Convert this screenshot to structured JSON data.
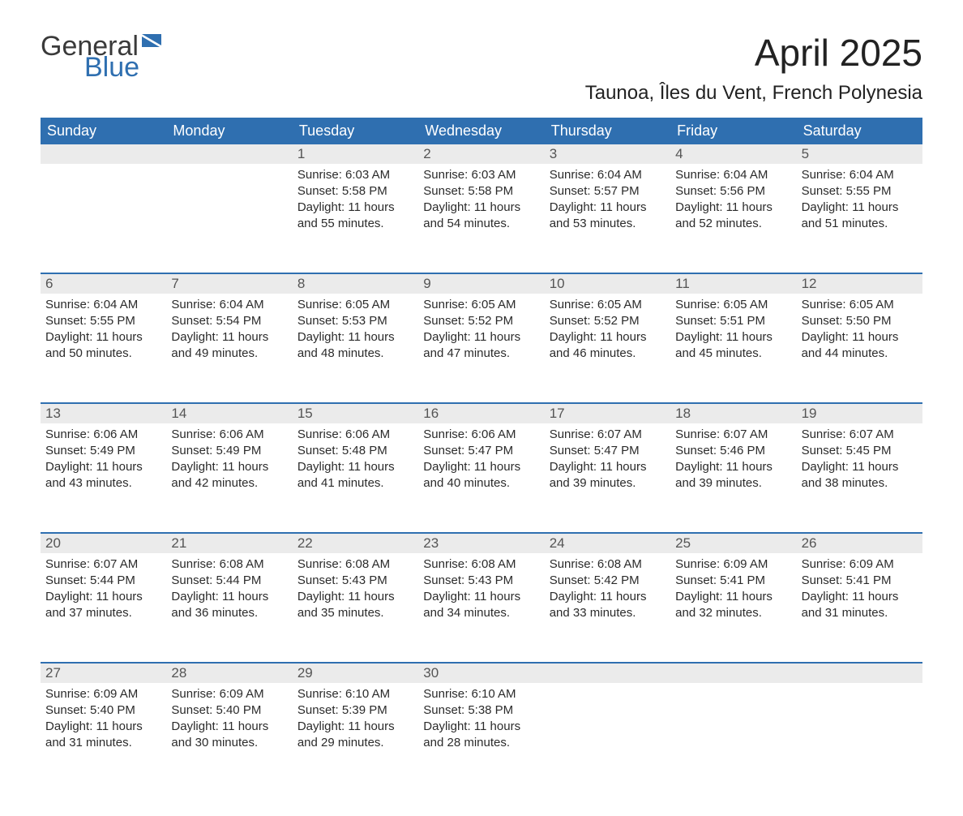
{
  "logo": {
    "text_general": "General",
    "text_blue": "Blue",
    "general_color": "#3a3a3a",
    "blue_color": "#2f6fb0",
    "flag_color": "#2f6fb0"
  },
  "header": {
    "month_title": "April 2025",
    "location": "Taunoa, Îles du Vent, French Polynesia",
    "title_color": "#222222",
    "title_fontsize": 46,
    "location_fontsize": 24
  },
  "calendar": {
    "header_bg": "#2f6fb0",
    "header_text_color": "#ffffff",
    "daynum_bg": "#ebebeb",
    "daynum_text_color": "#555555",
    "week_border_color": "#2f6fb0",
    "body_text_color": "#2b2b2b",
    "background_color": "#ffffff",
    "day_names": [
      "Sunday",
      "Monday",
      "Tuesday",
      "Wednesday",
      "Thursday",
      "Friday",
      "Saturday"
    ],
    "weeks": [
      {
        "nums": [
          "",
          "",
          "1",
          "2",
          "3",
          "4",
          "5"
        ],
        "cells": [
          null,
          null,
          {
            "sunrise": "Sunrise: 6:03 AM",
            "sunset": "Sunset: 5:58 PM",
            "dl1": "Daylight: 11 hours",
            "dl2": "and 55 minutes."
          },
          {
            "sunrise": "Sunrise: 6:03 AM",
            "sunset": "Sunset: 5:58 PM",
            "dl1": "Daylight: 11 hours",
            "dl2": "and 54 minutes."
          },
          {
            "sunrise": "Sunrise: 6:04 AM",
            "sunset": "Sunset: 5:57 PM",
            "dl1": "Daylight: 11 hours",
            "dl2": "and 53 minutes."
          },
          {
            "sunrise": "Sunrise: 6:04 AM",
            "sunset": "Sunset: 5:56 PM",
            "dl1": "Daylight: 11 hours",
            "dl2": "and 52 minutes."
          },
          {
            "sunrise": "Sunrise: 6:04 AM",
            "sunset": "Sunset: 5:55 PM",
            "dl1": "Daylight: 11 hours",
            "dl2": "and 51 minutes."
          }
        ]
      },
      {
        "nums": [
          "6",
          "7",
          "8",
          "9",
          "10",
          "11",
          "12"
        ],
        "cells": [
          {
            "sunrise": "Sunrise: 6:04 AM",
            "sunset": "Sunset: 5:55 PM",
            "dl1": "Daylight: 11 hours",
            "dl2": "and 50 minutes."
          },
          {
            "sunrise": "Sunrise: 6:04 AM",
            "sunset": "Sunset: 5:54 PM",
            "dl1": "Daylight: 11 hours",
            "dl2": "and 49 minutes."
          },
          {
            "sunrise": "Sunrise: 6:05 AM",
            "sunset": "Sunset: 5:53 PM",
            "dl1": "Daylight: 11 hours",
            "dl2": "and 48 minutes."
          },
          {
            "sunrise": "Sunrise: 6:05 AM",
            "sunset": "Sunset: 5:52 PM",
            "dl1": "Daylight: 11 hours",
            "dl2": "and 47 minutes."
          },
          {
            "sunrise": "Sunrise: 6:05 AM",
            "sunset": "Sunset: 5:52 PM",
            "dl1": "Daylight: 11 hours",
            "dl2": "and 46 minutes."
          },
          {
            "sunrise": "Sunrise: 6:05 AM",
            "sunset": "Sunset: 5:51 PM",
            "dl1": "Daylight: 11 hours",
            "dl2": "and 45 minutes."
          },
          {
            "sunrise": "Sunrise: 6:05 AM",
            "sunset": "Sunset: 5:50 PM",
            "dl1": "Daylight: 11 hours",
            "dl2": "and 44 minutes."
          }
        ]
      },
      {
        "nums": [
          "13",
          "14",
          "15",
          "16",
          "17",
          "18",
          "19"
        ],
        "cells": [
          {
            "sunrise": "Sunrise: 6:06 AM",
            "sunset": "Sunset: 5:49 PM",
            "dl1": "Daylight: 11 hours",
            "dl2": "and 43 minutes."
          },
          {
            "sunrise": "Sunrise: 6:06 AM",
            "sunset": "Sunset: 5:49 PM",
            "dl1": "Daylight: 11 hours",
            "dl2": "and 42 minutes."
          },
          {
            "sunrise": "Sunrise: 6:06 AM",
            "sunset": "Sunset: 5:48 PM",
            "dl1": "Daylight: 11 hours",
            "dl2": "and 41 minutes."
          },
          {
            "sunrise": "Sunrise: 6:06 AM",
            "sunset": "Sunset: 5:47 PM",
            "dl1": "Daylight: 11 hours",
            "dl2": "and 40 minutes."
          },
          {
            "sunrise": "Sunrise: 6:07 AM",
            "sunset": "Sunset: 5:47 PM",
            "dl1": "Daylight: 11 hours",
            "dl2": "and 39 minutes."
          },
          {
            "sunrise": "Sunrise: 6:07 AM",
            "sunset": "Sunset: 5:46 PM",
            "dl1": "Daylight: 11 hours",
            "dl2": "and 39 minutes."
          },
          {
            "sunrise": "Sunrise: 6:07 AM",
            "sunset": "Sunset: 5:45 PM",
            "dl1": "Daylight: 11 hours",
            "dl2": "and 38 minutes."
          }
        ]
      },
      {
        "nums": [
          "20",
          "21",
          "22",
          "23",
          "24",
          "25",
          "26"
        ],
        "cells": [
          {
            "sunrise": "Sunrise: 6:07 AM",
            "sunset": "Sunset: 5:44 PM",
            "dl1": "Daylight: 11 hours",
            "dl2": "and 37 minutes."
          },
          {
            "sunrise": "Sunrise: 6:08 AM",
            "sunset": "Sunset: 5:44 PM",
            "dl1": "Daylight: 11 hours",
            "dl2": "and 36 minutes."
          },
          {
            "sunrise": "Sunrise: 6:08 AM",
            "sunset": "Sunset: 5:43 PM",
            "dl1": "Daylight: 11 hours",
            "dl2": "and 35 minutes."
          },
          {
            "sunrise": "Sunrise: 6:08 AM",
            "sunset": "Sunset: 5:43 PM",
            "dl1": "Daylight: 11 hours",
            "dl2": "and 34 minutes."
          },
          {
            "sunrise": "Sunrise: 6:08 AM",
            "sunset": "Sunset: 5:42 PM",
            "dl1": "Daylight: 11 hours",
            "dl2": "and 33 minutes."
          },
          {
            "sunrise": "Sunrise: 6:09 AM",
            "sunset": "Sunset: 5:41 PM",
            "dl1": "Daylight: 11 hours",
            "dl2": "and 32 minutes."
          },
          {
            "sunrise": "Sunrise: 6:09 AM",
            "sunset": "Sunset: 5:41 PM",
            "dl1": "Daylight: 11 hours",
            "dl2": "and 31 minutes."
          }
        ]
      },
      {
        "nums": [
          "27",
          "28",
          "29",
          "30",
          "",
          "",
          ""
        ],
        "cells": [
          {
            "sunrise": "Sunrise: 6:09 AM",
            "sunset": "Sunset: 5:40 PM",
            "dl1": "Daylight: 11 hours",
            "dl2": "and 31 minutes."
          },
          {
            "sunrise": "Sunrise: 6:09 AM",
            "sunset": "Sunset: 5:40 PM",
            "dl1": "Daylight: 11 hours",
            "dl2": "and 30 minutes."
          },
          {
            "sunrise": "Sunrise: 6:10 AM",
            "sunset": "Sunset: 5:39 PM",
            "dl1": "Daylight: 11 hours",
            "dl2": "and 29 minutes."
          },
          {
            "sunrise": "Sunrise: 6:10 AM",
            "sunset": "Sunset: 5:38 PM",
            "dl1": "Daylight: 11 hours",
            "dl2": "and 28 minutes."
          },
          null,
          null,
          null
        ]
      }
    ]
  }
}
